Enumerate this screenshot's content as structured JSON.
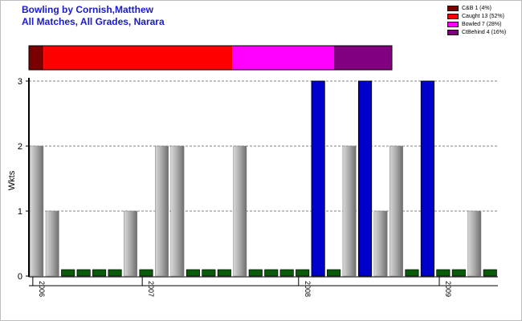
{
  "title": "Bowling by Cornish,Matthew",
  "subtitle": "All Matches, All Grades, Narara",
  "colors": {
    "wicket_bar": "#0000cc",
    "zero_bar": "#0a5c0a",
    "count_bar": "#a0a0a0",
    "title": "#1a1acc"
  },
  "legend": [
    {
      "label": "C&B 1 (4%)",
      "value": 1,
      "color": "#7a0000"
    },
    {
      "label": "Caught 13 (52%)",
      "value": 13,
      "color": "#ff0000"
    },
    {
      "label": "Bowled 7 (28%)",
      "value": 7,
      "color": "#ff00ff"
    },
    {
      "label": "CtBehind 4 (16%)",
      "value": 4,
      "color": "#800080"
    }
  ],
  "chart_data": {
    "type": "bar",
    "ylabel": "Wkts",
    "xlabel": "",
    "ylim": [
      0,
      3
    ],
    "yticks": [
      0,
      1,
      2,
      3
    ],
    "grid": true,
    "legend_position": "top-right",
    "year_ticks": [
      {
        "label": "2006",
        "at_match": 0
      },
      {
        "label": "2007",
        "at_match": 7
      },
      {
        "label": "2008",
        "at_match": 17
      },
      {
        "label": "2009",
        "at_match": 26
      }
    ],
    "values": [
      2,
      1,
      0,
      0,
      0,
      0,
      1,
      0,
      2,
      2,
      0,
      0,
      0,
      2,
      0,
      0,
      0,
      0,
      3,
      0,
      2,
      3,
      1,
      2,
      0,
      3,
      0,
      0,
      1,
      0
    ],
    "bar_kind": [
      "count",
      "count",
      "zero",
      "zero",
      "zero",
      "zero",
      "count",
      "zero",
      "count",
      "count",
      "zero",
      "zero",
      "zero",
      "count",
      "zero",
      "zero",
      "zero",
      "zero",
      "wicket",
      "zero",
      "count",
      "wicket",
      "count",
      "count",
      "zero",
      "wicket",
      "zero",
      "zero",
      "count",
      "zero"
    ],
    "dismissal_breakdown": [
      {
        "name": "C&B",
        "value": 1
      },
      {
        "name": "Caught",
        "value": 13
      },
      {
        "name": "Bowled",
        "value": 7
      },
      {
        "name": "CtBehind",
        "value": 4
      }
    ]
  }
}
